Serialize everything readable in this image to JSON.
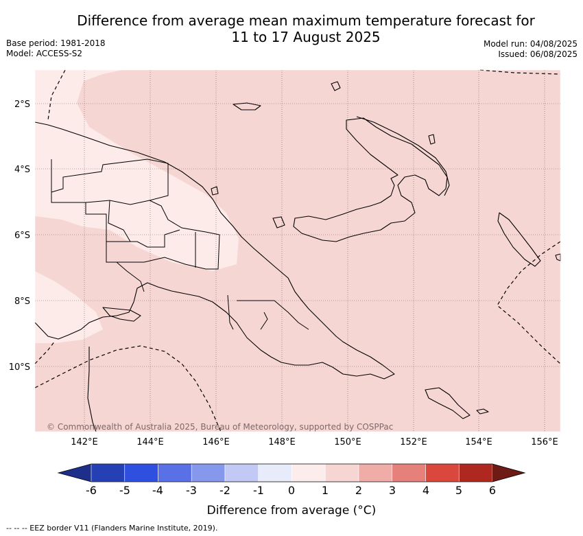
{
  "title_line1": "Difference from average mean maximum temperature forecast for",
  "title_line2": "11 to 17 August 2025",
  "base_period": "Base period: 1981-2018",
  "model": "Model: ACCESS-S2",
  "model_run": "Model run: 04/08/2025",
  "issued": "Issued: 06/08/2025",
  "lat_labels": [
    "2°S",
    "4°S",
    "6°S",
    "8°S",
    "10°S"
  ],
  "lon_labels": [
    "142°E",
    "144°E",
    "146°E",
    "148°E",
    "150°E",
    "152°E",
    "154°E",
    "156°E"
  ],
  "credit": "© Commonwealth of Australia 2025, Bureau of Meteorology, supported by COSPPac",
  "colorbar": {
    "ticks": [
      "-6",
      "-5",
      "-4",
      "-3",
      "-2",
      "-1",
      "0",
      "1",
      "2",
      "3",
      "4",
      "5",
      "6"
    ],
    "title": "Difference from average (°C)",
    "colors": [
      "#1d2f8a",
      "#2440b4",
      "#2f4fe0",
      "#5a70e6",
      "#8698ec",
      "#c1c9f4",
      "#e7ebfa",
      "#fceceb",
      "#f6d5d3",
      "#f0aca7",
      "#e6807a",
      "#d9473d",
      "#ae2820",
      "#6e1a15"
    ]
  },
  "map_colors": {
    "category_0_1": "#fcebe9",
    "category_1_2": "#f6d6d3"
  },
  "footer": "--  --  -- EEZ border V11 (Flanders Marine Institute, 2019)."
}
